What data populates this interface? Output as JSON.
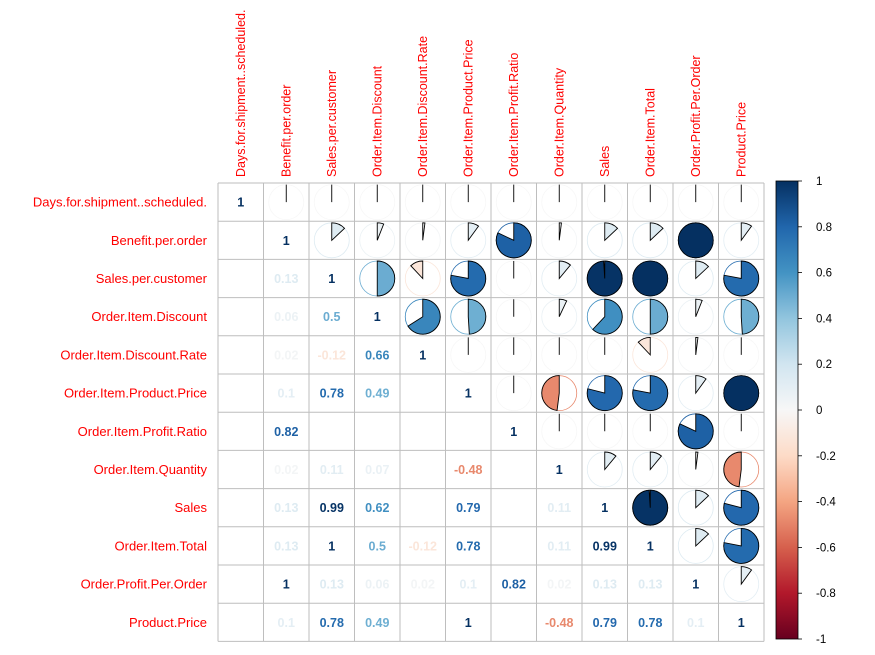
{
  "chart_data": {
    "type": "heatmap",
    "variables": [
      "Days.for.shipment..scheduled.",
      "Benefit.per.order",
      "Sales.per.customer",
      "Order.Item.Discount",
      "Order.Item.Discount.Rate",
      "Order.Item.Product.Price",
      "Order.Item.Profit.Ratio",
      "Order.Item.Quantity",
      "Sales",
      "Order.Item.Total",
      "Order.Profit.Per.Order",
      "Product.Price"
    ],
    "matrix": [
      [
        1,
        0,
        0,
        0,
        0,
        0,
        0,
        0,
        0,
        0,
        0,
        0
      ],
      [
        0,
        1,
        0.13,
        0.06,
        0.02,
        0.1,
        0.82,
        0.02,
        0.13,
        0.13,
        1,
        0.1
      ],
      [
        0,
        0.13,
        1,
        0.5,
        -0.12,
        0.78,
        0,
        0.11,
        0.99,
        1,
        0.13,
        0.78
      ],
      [
        0,
        0.06,
        0.5,
        1,
        0.66,
        0.49,
        0,
        0.07,
        0.62,
        0.5,
        0.06,
        0.49
      ],
      [
        0,
        0.02,
        -0.12,
        0.66,
        1,
        0,
        0,
        0,
        0,
        -0.12,
        0.02,
        0
      ],
      [
        0,
        0.1,
        0.78,
        0.49,
        0,
        1,
        0,
        -0.48,
        0.79,
        0.78,
        0.1,
        1
      ],
      [
        0,
        0.82,
        0,
        0,
        0,
        0,
        1,
        0,
        0,
        0,
        0.82,
        0
      ],
      [
        0,
        0.02,
        0.11,
        0.07,
        0,
        -0.48,
        0,
        1,
        0.11,
        0.11,
        0.02,
        -0.48
      ],
      [
        0,
        0.13,
        0.99,
        0.62,
        0,
        0.79,
        0,
        0.11,
        1,
        0.99,
        0.13,
        0.79
      ],
      [
        0,
        0.13,
        1,
        0.5,
        -0.12,
        0.78,
        0,
        0.11,
        0.99,
        1,
        0.13,
        0.78
      ],
      [
        0,
        1,
        0.13,
        0.06,
        0.02,
        0.1,
        0.82,
        0.02,
        0.13,
        0.13,
        1,
        0.1
      ],
      [
        0,
        0.1,
        0.78,
        0.49,
        0,
        1,
        0,
        -0.48,
        0.79,
        0.78,
        0.1,
        1
      ]
    ],
    "lower_labels": [
      [
        null,
        null,
        null,
        null,
        null,
        null,
        null,
        null,
        null,
        null,
        null,
        null
      ],
      [
        null,
        "1",
        null,
        null,
        null,
        null,
        null,
        null,
        null,
        null,
        null,
        null
      ],
      [
        null,
        "0.13",
        "1",
        null,
        null,
        null,
        null,
        null,
        null,
        null,
        null,
        null
      ],
      [
        null,
        "0.06",
        "0.5",
        "1",
        null,
        null,
        null,
        null,
        null,
        null,
        null,
        null
      ],
      [
        null,
        "0.02",
        "-0.12",
        "0.66",
        "1",
        null,
        null,
        null,
        null,
        null,
        null,
        null
      ],
      [
        null,
        "0.1",
        "0.78",
        "0.49",
        null,
        "1",
        null,
        null,
        null,
        null,
        null,
        null
      ],
      [
        null,
        "0.82",
        null,
        null,
        null,
        null,
        "1",
        null,
        null,
        null,
        null,
        null
      ],
      [
        null,
        "0.02",
        "0.11",
        "0.07",
        null,
        "-0.48",
        null,
        "1",
        null,
        null,
        null,
        null
      ],
      [
        null,
        "0.13",
        "0.99",
        "0.62",
        null,
        "0.79",
        null,
        "0.11",
        "1",
        null,
        null,
        null
      ],
      [
        null,
        "0.13",
        "1",
        "0.5",
        "-0.12",
        "0.78",
        null,
        "0.11",
        "0.99",
        "1",
        null,
        null
      ],
      [
        null,
        "1",
        "0.13",
        "0.06",
        "0.02",
        "0.1",
        "0.82",
        "0.02",
        "0.13",
        "0.13",
        "1",
        null
      ],
      [
        null,
        "0.1",
        "0.78",
        "0.49",
        null,
        "1",
        null,
        "-0.48",
        "0.79",
        "0.78",
        "0.1",
        "1"
      ]
    ],
    "diagonal_first_label": "1",
    "upper": "pie",
    "lower": "number",
    "colorbar": {
      "range": [
        -1,
        1
      ],
      "ticks": [
        "1",
        "0.8",
        "0.6",
        "0.4",
        "0.2",
        "0",
        "-0.2",
        "-0.4",
        "-0.6",
        "-0.8",
        "-1"
      ],
      "placement": "right"
    },
    "colors": {
      "negative_end": "#67001F",
      "neutral": "#F7F7F7",
      "positive_end": "#053061",
      "label_color": "#FF0000",
      "grid": "#BEBEBE"
    }
  }
}
